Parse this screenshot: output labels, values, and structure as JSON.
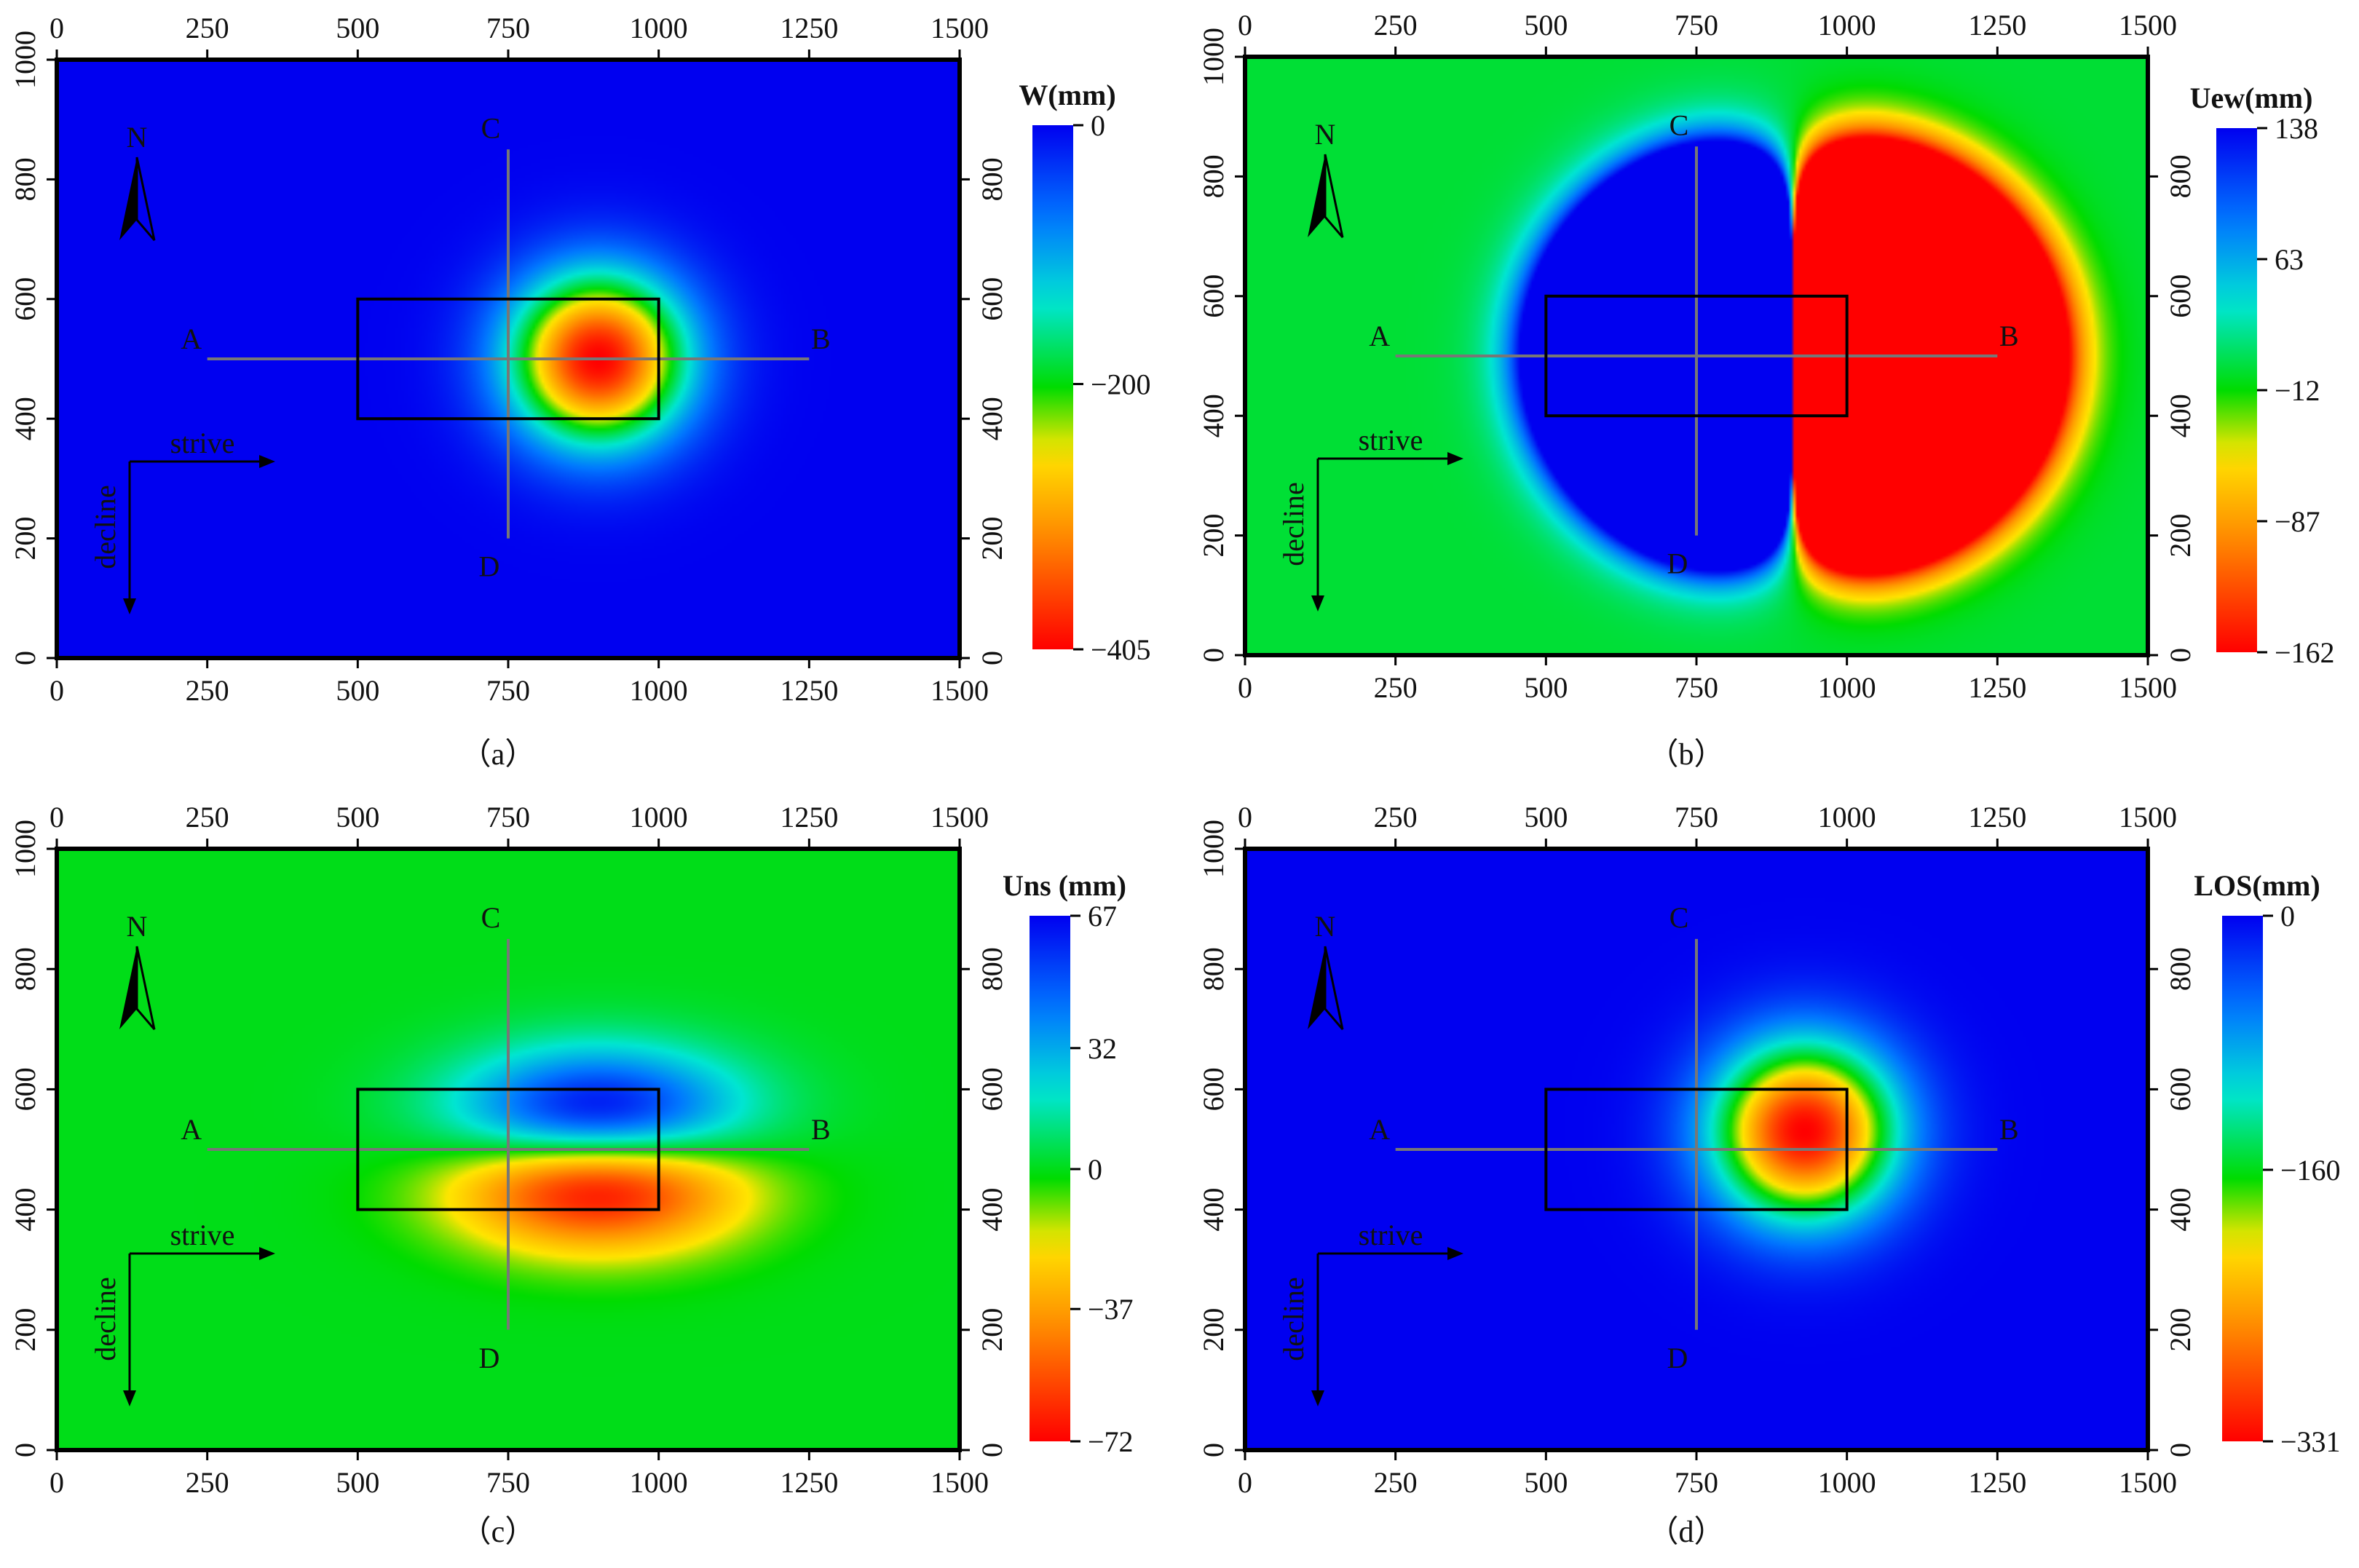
{
  "figure": {
    "panels": [
      "a",
      "b",
      "c",
      "d"
    ]
  },
  "chart_data": [
    {
      "type": "heatmap",
      "panel_caption": "（a）",
      "colorbar_title": "W(mm)",
      "colorbar_ticks": [
        "0",
        "−200",
        "−405"
      ],
      "colorbar_tick_values": [
        0,
        -200,
        -405
      ],
      "value_range": [
        -405,
        0
      ],
      "field": "subsidence",
      "peak": {
        "x": 900,
        "y": 500,
        "value": -405
      },
      "x_ticks": [
        "0",
        "250",
        "500",
        "750",
        "1000",
        "1250",
        "1500"
      ],
      "y_ticks": [
        "0",
        "200",
        "400",
        "600",
        "800",
        "1000"
      ],
      "y_ticks_right": [
        "0",
        "200",
        "400",
        "600",
        "800"
      ],
      "xlim": [
        0,
        1500
      ],
      "ylim": [
        0,
        1000
      ],
      "working_face": {
        "x": [
          500,
          1000
        ],
        "y": [
          400,
          600
        ]
      },
      "profile_AB": {
        "x": [
          250,
          1250
        ],
        "y": 500
      },
      "profile_CD": {
        "x": 750,
        "y": [
          200,
          850
        ]
      },
      "labels": {
        "A": "A",
        "B": "B",
        "C": "C",
        "D": "D",
        "north": "N",
        "strike": "strive",
        "dip": "decline"
      }
    },
    {
      "type": "heatmap",
      "panel_caption": "（b）",
      "colorbar_title": "Uew(mm)",
      "colorbar_ticks": [
        "138",
        "63",
        "−12",
        "−87",
        "−162"
      ],
      "colorbar_tick_values": [
        138,
        63,
        -12,
        -87,
        -162
      ],
      "value_range": [
        -162,
        138
      ],
      "field": "east-west",
      "peak": {
        "x": 900,
        "y": 500,
        "value_pos": 138,
        "value_neg": -162
      },
      "x_ticks": [
        "0",
        "250",
        "500",
        "750",
        "1000",
        "1250",
        "1500"
      ],
      "y_ticks": [
        "0",
        "200",
        "400",
        "600",
        "800",
        "1000"
      ],
      "y_ticks_right": [
        "0",
        "200",
        "400",
        "600",
        "800"
      ],
      "xlim": [
        0,
        1500
      ],
      "ylim": [
        0,
        1000
      ],
      "working_face": {
        "x": [
          500,
          1000
        ],
        "y": [
          400,
          600
        ]
      },
      "profile_AB": {
        "x": [
          250,
          1250
        ],
        "y": 500
      },
      "profile_CD": {
        "x": 750,
        "y": [
          200,
          850
        ]
      },
      "labels": {
        "A": "A",
        "B": "B",
        "C": "C",
        "D": "D",
        "north": "N",
        "strike": "strive",
        "dip": "decline"
      }
    },
    {
      "type": "heatmap",
      "panel_caption": "（c）",
      "colorbar_title": "Uns (mm)",
      "colorbar_ticks": [
        "67",
        "32",
        "0",
        "−37",
        "−72"
      ],
      "colorbar_tick_values": [
        67,
        32,
        0,
        -37,
        -72
      ],
      "value_range": [
        -72,
        67
      ],
      "field": "north-south",
      "peak": {
        "x": 900,
        "y": 500,
        "value_pos": 67,
        "value_neg": -72
      },
      "x_ticks": [
        "0",
        "250",
        "500",
        "750",
        "1000",
        "1250",
        "1500"
      ],
      "y_ticks": [
        "0",
        "200",
        "400",
        "600",
        "800",
        "1000"
      ],
      "y_ticks_right": [
        "0",
        "200",
        "400",
        "600",
        "800"
      ],
      "xlim": [
        0,
        1500
      ],
      "ylim": [
        0,
        1000
      ],
      "working_face": {
        "x": [
          500,
          1000
        ],
        "y": [
          400,
          600
        ]
      },
      "profile_AB": {
        "x": [
          250,
          1250
        ],
        "y": 500
      },
      "profile_CD": {
        "x": 750,
        "y": [
          200,
          850
        ]
      },
      "labels": {
        "A": "A",
        "B": "B",
        "C": "C",
        "D": "D",
        "north": "N",
        "strike": "strive",
        "dip": "decline"
      }
    },
    {
      "type": "heatmap",
      "panel_caption": "（d）",
      "colorbar_title": "LOS(mm)",
      "colorbar_ticks": [
        "0",
        "−160",
        "−331"
      ],
      "colorbar_tick_values": [
        0,
        -160,
        -331
      ],
      "value_range": [
        -331,
        0
      ],
      "field": "los",
      "peak": {
        "x": 930,
        "y": 530,
        "value": -331
      },
      "x_ticks": [
        "0",
        "250",
        "500",
        "750",
        "1000",
        "1250",
        "1500"
      ],
      "y_ticks": [
        "0",
        "200",
        "400",
        "600",
        "800",
        "1000"
      ],
      "y_ticks_right": [
        "0",
        "200",
        "400",
        "600",
        "800"
      ],
      "xlim": [
        0,
        1500
      ],
      "ylim": [
        0,
        1000
      ],
      "working_face": {
        "x": [
          500,
          1000
        ],
        "y": [
          400,
          600
        ]
      },
      "profile_AB": {
        "x": [
          250,
          1250
        ],
        "y": 500
      },
      "profile_CD": {
        "x": 750,
        "y": [
          200,
          850
        ]
      },
      "labels": {
        "A": "A",
        "B": "B",
        "C": "C",
        "D": "D",
        "north": "N",
        "strike": "strive",
        "dip": "decline"
      }
    }
  ]
}
